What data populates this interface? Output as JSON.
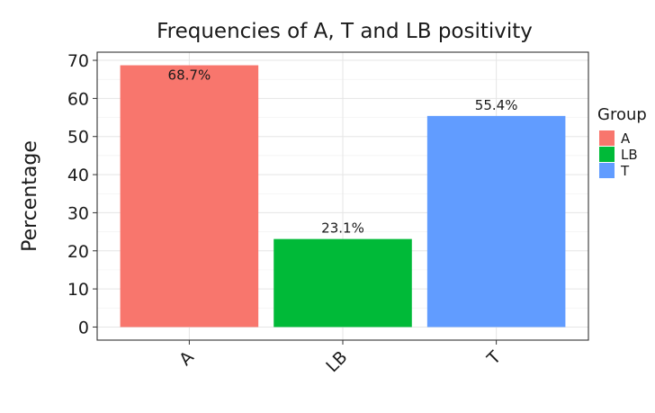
{
  "chart_data": {
    "type": "bar",
    "title": "Frequencies of A, T and LB positivity",
    "xlabel": "",
    "ylabel": "Percentage",
    "categories": [
      "A",
      "LB",
      "T"
    ],
    "values": [
      68.7,
      23.1,
      55.4
    ],
    "data_labels": [
      "68.7%",
      "23.1%",
      "55.4%"
    ],
    "colors": [
      "#F8766D",
      "#00BA38",
      "#619CFF"
    ],
    "ylim": [
      0,
      70
    ],
    "yticks": [
      0,
      10,
      20,
      30,
      40,
      50,
      60,
      70
    ],
    "grid": true,
    "legend": {
      "title": "Group",
      "placement": "right",
      "entries": [
        {
          "label": "A",
          "color": "#F8766D"
        },
        {
          "label": "LB",
          "color": "#00BA38"
        },
        {
          "label": "T",
          "color": "#619CFF"
        }
      ]
    }
  }
}
